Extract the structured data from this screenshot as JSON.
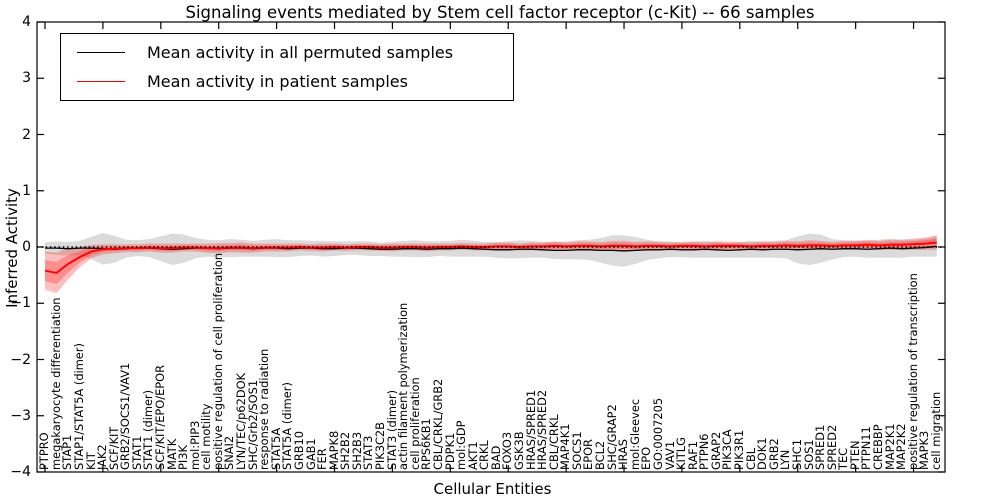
{
  "title": "Signaling events mediated by Stem cell factor receptor (c-Kit) -- 66 samples",
  "axes": {
    "ylabel": "Inferred Activity",
    "xlabel": "Cellular Entities",
    "ytick_labels": [
      "4",
      "3",
      "2",
      "1",
      "0",
      "−1",
      "−2",
      "−3",
      "−4"
    ]
  },
  "legend": {
    "entries": [
      {
        "label": "Mean activity in all permuted samples",
        "color": "#000000"
      },
      {
        "label": "Mean activity in patient samples",
        "color": "#ff0000"
      }
    ]
  },
  "chart_data": {
    "type": "line",
    "title": "Signaling events mediated by Stem cell factor receptor (c-Kit) -- 66 samples",
    "xlabel": "Cellular Entities",
    "ylabel": "Inferred Activity",
    "ylim": [
      -4,
      4
    ],
    "yticks": [
      4,
      3,
      2,
      1,
      0,
      -1,
      -2,
      -3,
      -4
    ],
    "grid": false,
    "legend_position": "upper left",
    "reference_line": {
      "y": 0,
      "style": "dotted",
      "color": "#000000"
    },
    "categories": [
      "PTPRO",
      "megakaryocyte differentiation",
      "STAP1",
      "STAP1/STAT5A (dimer)",
      "KIT",
      "JAK2",
      "SCF/KIT",
      "GRB2/SOCS1/VAV1",
      "STAT1",
      "STAT1 (dimer)",
      "SCF/KIT/EPO/EPOR",
      "MATK",
      "PI3K",
      "mol:PIP3",
      "cell motility",
      "positive regulation of cell proliferation",
      "SNAI2",
      "LYN/TEC/p62DOK",
      "SHC/Grb2/SOS1",
      "response to radiation",
      "STAT5A",
      "STAT5A (dimer)",
      "GRB10",
      "GAB1",
      "FER",
      "MAPK8",
      "SH2B2",
      "SH2B3",
      "STAT3",
      "PIK3C2B",
      "STAT3 (dimer)",
      "actin filament polymerization",
      "cell proliferation",
      "RPS6KB1",
      "CBL/CRKL/GRB2",
      "PDPK1",
      "mol:GDP",
      "AKT1",
      "CRKL",
      "BAD",
      "FOXO3",
      "GSK3B",
      "HRAS/SPRED1",
      "HRAS/SPRED2",
      "CBL/CRKL",
      "MAP4K1",
      "SOCS1",
      "EPOR",
      "BCL2",
      "SHC/GRAP2",
      "HRAS",
      "mol:Gleevec",
      "EPO",
      "GO:0007205",
      "VAV1",
      "KITLG",
      "RAF1",
      "PTPN6",
      "GRAP2",
      "PIK3CA",
      "PIK3R1",
      "CBL",
      "DOK1",
      "GRB2",
      "LYN",
      "SHC1",
      "SOS1",
      "SPRED1",
      "SPRED2",
      "TEC",
      "PTEN",
      "PTPN11",
      "CREBBP",
      "MAP2K1",
      "MAP2K2",
      "positive regulation of transcription",
      "MAPK3",
      "cell migration"
    ],
    "series": [
      {
        "name": "Mean activity in all permuted samples",
        "color": "#000000",
        "band_color": "#999999",
        "band_opacity": 0.35,
        "values": [
          -0.02,
          -0.02,
          -0.03,
          -0.02,
          -0.02,
          -0.03,
          -0.04,
          -0.03,
          -0.02,
          -0.02,
          -0.03,
          -0.04,
          -0.03,
          -0.02,
          -0.02,
          -0.03,
          -0.02,
          -0.02,
          -0.03,
          -0.02,
          -0.02,
          -0.03,
          -0.02,
          -0.02,
          -0.03,
          -0.03,
          -0.02,
          -0.02,
          -0.03,
          -0.04,
          -0.04,
          -0.03,
          -0.03,
          -0.04,
          -0.03,
          -0.03,
          -0.02,
          -0.03,
          -0.04,
          -0.05,
          -0.05,
          -0.04,
          -0.04,
          -0.05,
          -0.06,
          -0.06,
          -0.05,
          -0.05,
          -0.06,
          -0.06,
          -0.07,
          -0.06,
          -0.05,
          -0.05,
          -0.04,
          -0.05,
          -0.05,
          -0.04,
          -0.05,
          -0.06,
          -0.05,
          -0.04,
          -0.05,
          -0.04,
          -0.04,
          -0.05,
          -0.04,
          -0.03,
          -0.04,
          -0.03,
          -0.03,
          -0.04,
          -0.03,
          -0.02,
          -0.03,
          -0.02,
          -0.01,
          0.01
        ],
        "band_sigma": [
          0.1,
          0.12,
          0.12,
          0.13,
          0.2,
          0.28,
          0.24,
          0.16,
          0.14,
          0.16,
          0.22,
          0.28,
          0.25,
          0.18,
          0.15,
          0.15,
          0.16,
          0.15,
          0.14,
          0.15,
          0.16,
          0.15,
          0.14,
          0.13,
          0.14,
          0.13,
          0.12,
          0.12,
          0.13,
          0.12,
          0.13,
          0.14,
          0.15,
          0.14,
          0.13,
          0.14,
          0.15,
          0.14,
          0.13,
          0.14,
          0.15,
          0.16,
          0.15,
          0.14,
          0.15,
          0.16,
          0.17,
          0.18,
          0.22,
          0.27,
          0.28,
          0.24,
          0.18,
          0.15,
          0.14,
          0.13,
          0.14,
          0.15,
          0.14,
          0.13,
          0.14,
          0.15,
          0.14,
          0.15,
          0.16,
          0.24,
          0.28,
          0.25,
          0.18,
          0.15,
          0.14,
          0.15,
          0.16,
          0.17,
          0.16,
          0.15,
          0.16,
          0.18
        ]
      },
      {
        "name": "Mean activity in patient samples",
        "color": "#ff0000",
        "band_color": "#ff0000",
        "band_opacity": 0.25,
        "values": [
          -0.42,
          -0.46,
          -0.3,
          -0.18,
          -0.08,
          -0.04,
          -0.03,
          -0.02,
          -0.02,
          -0.01,
          -0.02,
          -0.02,
          -0.01,
          -0.01,
          -0.02,
          -0.02,
          -0.01,
          -0.01,
          -0.02,
          -0.01,
          -0.01,
          -0.01,
          0.0,
          -0.01,
          -0.01,
          0.0,
          -0.01,
          0.0,
          0.0,
          -0.01,
          -0.01,
          0.0,
          0.0,
          -0.01,
          0.0,
          0.0,
          0.01,
          0.0,
          0.0,
          0.01,
          0.01,
          0.0,
          0.01,
          0.01,
          0.02,
          0.01,
          0.02,
          0.02,
          0.01,
          0.02,
          0.02,
          0.01,
          0.02,
          0.02,
          0.01,
          0.02,
          0.02,
          0.01,
          0.02,
          0.02,
          0.02,
          0.01,
          0.02,
          0.02,
          0.03,
          0.02,
          0.03,
          0.03,
          0.02,
          0.03,
          0.03,
          0.04,
          0.03,
          0.04,
          0.04,
          0.05,
          0.06,
          0.08
        ],
        "band_sigma": [
          0.34,
          0.36,
          0.28,
          0.18,
          0.12,
          0.09,
          0.08,
          0.07,
          0.07,
          0.07,
          0.08,
          0.08,
          0.07,
          0.07,
          0.08,
          0.09,
          0.08,
          0.09,
          0.08,
          0.07,
          0.07,
          0.07,
          0.06,
          0.06,
          0.07,
          0.06,
          0.06,
          0.06,
          0.06,
          0.06,
          0.07,
          0.06,
          0.06,
          0.07,
          0.06,
          0.06,
          0.06,
          0.06,
          0.06,
          0.07,
          0.07,
          0.06,
          0.07,
          0.07,
          0.08,
          0.07,
          0.08,
          0.08,
          0.08,
          0.09,
          0.09,
          0.08,
          0.08,
          0.07,
          0.07,
          0.07,
          0.08,
          0.07,
          0.08,
          0.08,
          0.07,
          0.07,
          0.08,
          0.07,
          0.08,
          0.08,
          0.09,
          0.08,
          0.07,
          0.08,
          0.08,
          0.09,
          0.08,
          0.09,
          0.09,
          0.1,
          0.11,
          0.13
        ]
      }
    ]
  }
}
